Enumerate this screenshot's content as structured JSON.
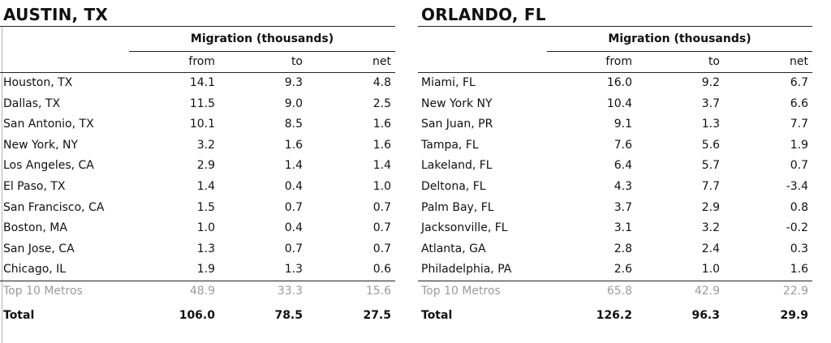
{
  "group_header": "Migration (thousands)",
  "columns": {
    "from": "from",
    "to": "to",
    "net": "net"
  },
  "panels": [
    {
      "title": "AUSTIN, TX",
      "rows": [
        {
          "city": "Houston, TX",
          "from": "14.1",
          "to": "9.3",
          "net": "4.8"
        },
        {
          "city": "Dallas, TX",
          "from": "11.5",
          "to": "9.0",
          "net": "2.5"
        },
        {
          "city": "San Antonio, TX",
          "from": "10.1",
          "to": "8.5",
          "net": "1.6"
        },
        {
          "city": "New York, NY",
          "from": "3.2",
          "to": "1.6",
          "net": "1.6"
        },
        {
          "city": "Los Angeles, CA",
          "from": "2.9",
          "to": "1.4",
          "net": "1.4"
        },
        {
          "city": "El Paso, TX",
          "from": "1.4",
          "to": "0.4",
          "net": "1.0"
        },
        {
          "city": "San Francisco, CA",
          "from": "1.5",
          "to": "0.7",
          "net": "0.7"
        },
        {
          "city": "Boston, MA",
          "from": "1.0",
          "to": "0.4",
          "net": "0.7"
        },
        {
          "city": "San Jose, CA",
          "from": "1.3",
          "to": "0.7",
          "net": "0.7"
        },
        {
          "city": "Chicago, IL",
          "from": "1.9",
          "to": "1.3",
          "net": "0.6"
        }
      ],
      "top10": {
        "label": "Top 10 Metros",
        "from": "48.9",
        "to": "33.3",
        "net": "15.6"
      },
      "total": {
        "label": "Total",
        "from": "106.0",
        "to": "78.5",
        "net": "27.5"
      }
    },
    {
      "title": "ORLANDO, FL",
      "rows": [
        {
          "city": "Miami, FL",
          "from": "16.0",
          "to": "9.2",
          "net": "6.7"
        },
        {
          "city": "New York NY",
          "from": "10.4",
          "to": "3.7",
          "net": "6.6"
        },
        {
          "city": "San Juan, PR",
          "from": "9.1",
          "to": "1.3",
          "net": "7.7"
        },
        {
          "city": "Tampa, FL",
          "from": "7.6",
          "to": "5.6",
          "net": "1.9"
        },
        {
          "city": "Lakeland, FL",
          "from": "6.4",
          "to": "5.7",
          "net": "0.7"
        },
        {
          "city": "Deltona, FL",
          "from": "4.3",
          "to": "7.7",
          "net": "-3.4"
        },
        {
          "city": "Palm Bay, FL",
          "from": "3.7",
          "to": "2.9",
          "net": "0.8"
        },
        {
          "city": "Jacksonville, FL",
          "from": "3.1",
          "to": "3.2",
          "net": "-0.2"
        },
        {
          "city": "Atlanta, GA",
          "from": "2.8",
          "to": "2.4",
          "net": "0.3"
        },
        {
          "city": "Philadelphia, PA",
          "from": "2.6",
          "to": "1.0",
          "net": "1.6"
        }
      ],
      "top10": {
        "label": "Top 10 Metros",
        "from": "65.8",
        "to": "42.9",
        "net": "22.9"
      },
      "total": {
        "label": "Total",
        "from": "126.2",
        "to": "96.3",
        "net": "29.9"
      }
    }
  ]
}
